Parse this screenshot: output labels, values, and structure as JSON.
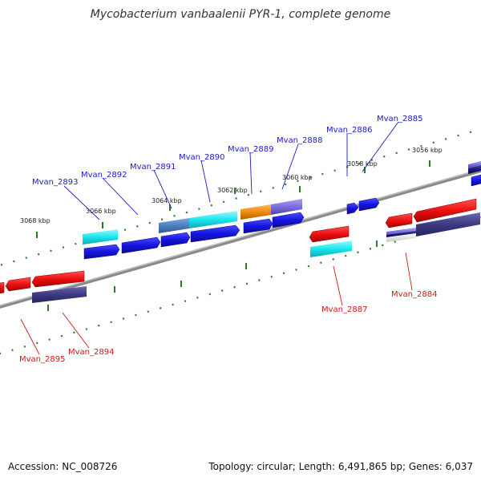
{
  "title": "Mycobacterium vanbaalenii PYR-1, complete genome",
  "footer": {
    "accession": "Accession: NC_008726",
    "summary": "Topology: circular; Length: 6,491,865 bp; Genes: 6,037"
  },
  "colors": {
    "backbone": "#8a8a8a",
    "tick": "#2a7a2a",
    "forward_label": "#1a1acc",
    "reverse_label": "#cc1a1a",
    "cds_forward": "#1515e0",
    "cds_reverse": "#ee1111",
    "cog_cyan": "#19e6ee",
    "cog_orange": "#f08a10",
    "cog_lavender": "#7a6ee0",
    "cog_steel": "#4d7fbf",
    "cog_darkslate": "#3d3a80",
    "cog_navy": "#1a1a70"
  },
  "ticks": [
    {
      "label": "3068 kbp"
    },
    {
      "label": "3066 kbp"
    },
    {
      "label": "3064 kbp"
    },
    {
      "label": "3062 kbp"
    },
    {
      "label": "3060 kbp"
    },
    {
      "label": "3058 kbp"
    },
    {
      "label": "3056 kbp"
    }
  ],
  "genes": {
    "forward": [
      {
        "name": "Mvan_2893"
      },
      {
        "name": "Mvan_2892"
      },
      {
        "name": "Mvan_2891"
      },
      {
        "name": "Mvan_2890"
      },
      {
        "name": "Mvan_2889"
      },
      {
        "name": "Mvan_2888"
      },
      {
        "name": "Mvan_2886"
      },
      {
        "name": "Mvan_2885"
      }
    ],
    "reverse": [
      {
        "name": "Mvan_2895"
      },
      {
        "name": "Mvan_2894"
      },
      {
        "name": "Mvan_2887"
      },
      {
        "name": "Mvan_2884"
      }
    ]
  }
}
